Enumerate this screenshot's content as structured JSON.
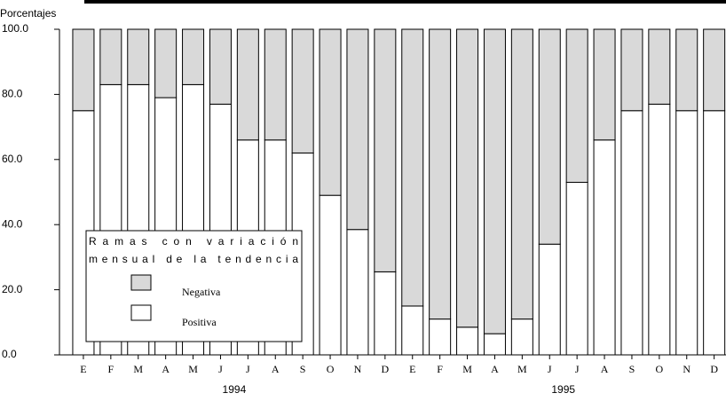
{
  "chart_data": {
    "type": "stacked_bar",
    "y_label": "Porcentajes",
    "categories": [
      "E",
      "F",
      "M",
      "A",
      "M",
      "J",
      "J",
      "A",
      "S",
      "O",
      "N",
      "D",
      "E",
      "F",
      "M",
      "A",
      "M",
      "J",
      "J",
      "A",
      "S",
      "O",
      "N",
      "D"
    ],
    "years": [
      "1994",
      "1995"
    ],
    "series": [
      {
        "name": "Positiva",
        "color": "#ffffff",
        "values": [
          75,
          83,
          83,
          79,
          83,
          77,
          66,
          66,
          62,
          49,
          38.5,
          25.5,
          15,
          11,
          8.5,
          6.5,
          11,
          34,
          53,
          66,
          75,
          77,
          75,
          75
        ]
      },
      {
        "name": "Negativa",
        "color": "#d9d9d9",
        "values": [
          25,
          17,
          17,
          21,
          17,
          23,
          34,
          34,
          38,
          51,
          61.5,
          74.5,
          85,
          89,
          91.5,
          93.5,
          89,
          66,
          47,
          34,
          25,
          23,
          25,
          25
        ]
      }
    ],
    "legend_title": [
      "Ramas con variación",
      "mensual de la tendencia"
    ],
    "ylim": [
      0,
      100
    ],
    "yticks": [
      {
        "value": 0,
        "label": "0.0"
      },
      {
        "value": 20,
        "label": "20.0"
      },
      {
        "value": 40,
        "label": "40.0"
      },
      {
        "value": 60,
        "label": "60.0"
      },
      {
        "value": 80,
        "label": "80.0"
      },
      {
        "value": 100,
        "label": "100.0"
      }
    ]
  }
}
